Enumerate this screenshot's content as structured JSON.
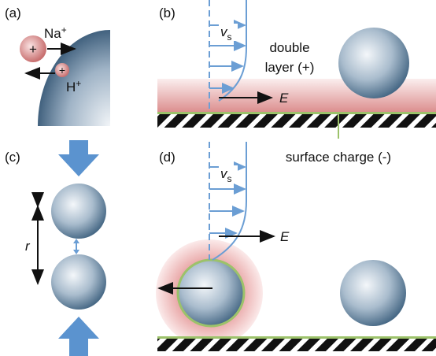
{
  "panels": [
    {
      "label": "(a)",
      "ions": [
        {
          "sign": "+",
          "name": "Na",
          "sup": "+"
        },
        {
          "sign": "+",
          "name": "H",
          "sup": "+"
        }
      ]
    },
    {
      "label": "(b)",
      "velocity": {
        "name": "v",
        "sub": "s"
      },
      "layer_lines": [
        "double",
        "layer (+)"
      ],
      "field": "E"
    },
    {
      "label": "(c)",
      "distance": "r"
    },
    {
      "label": "(d)",
      "velocity": {
        "name": "v",
        "sub": "s"
      },
      "charge": "surface charge (-)",
      "field": "E"
    }
  ]
}
